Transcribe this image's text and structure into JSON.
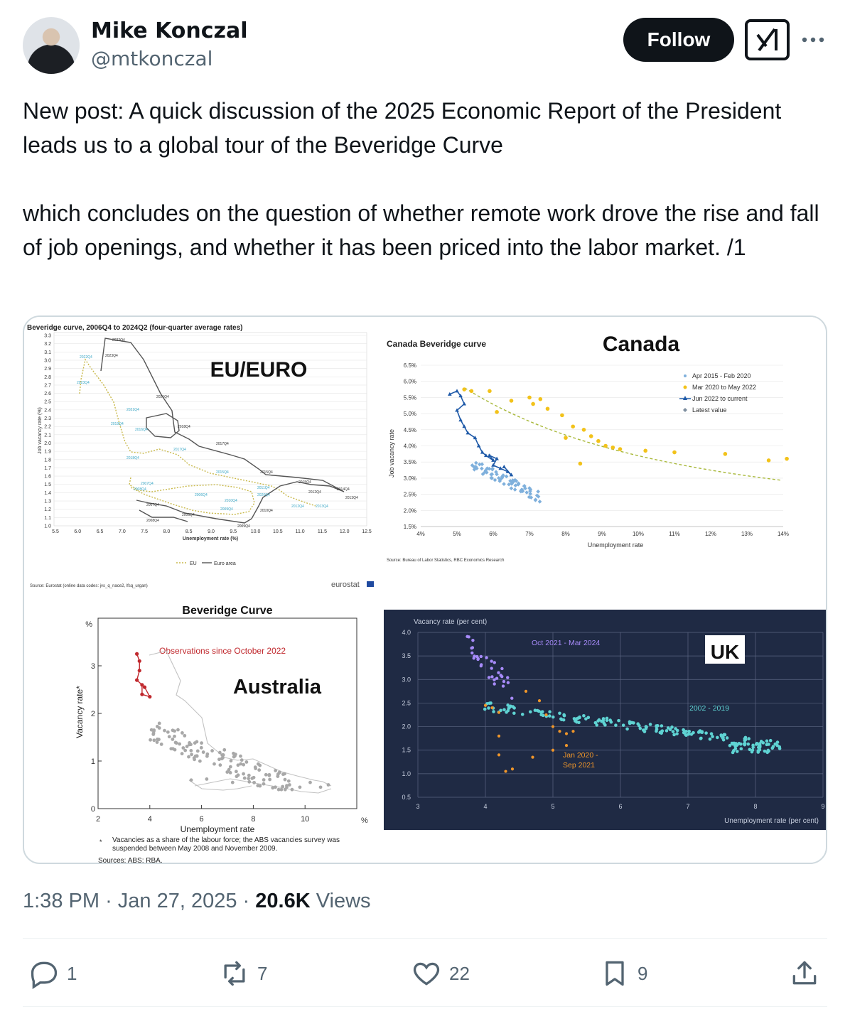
{
  "author": {
    "name": "Mike Konczal",
    "handle": "@mtkonczal",
    "follow_label": "Follow"
  },
  "tweet": {
    "text": "New post: A quick discussion of the 2025 Economic Report of the President leads us to a global tour of the Beveridge Curve\n\nwhich concludes on the question of whether remote work drove the rise and fall of job openings, and whether it has been priced into the labor market. /1"
  },
  "meta": {
    "time": "1:38 PM",
    "date": "Jan 27, 2025",
    "views_count": "20.6K",
    "views_label": "Views"
  },
  "actions": {
    "replies": "1",
    "reposts": "7",
    "likes": "22",
    "bookmarks": "9"
  },
  "media": {
    "eu": {
      "title": "Beveridge curve, 2006Q4 to 2024Q2 (four-quarter average rates)",
      "big_label": "EU/EURO",
      "ylabel": "Job vacancy rate (%)",
      "xlabel": "Unemployment rate (%)",
      "legend_eu": "EU",
      "legend_euro": "Euro area",
      "source": "Source: Eurostat (online data codes: jvs_q_nace2, lfsq_urgan)",
      "brand": "eurostat",
      "x_ticks": [
        "5.5",
        "6.0",
        "6.5",
        "7.0",
        "7.5",
        "8.0",
        "8.5",
        "9.0",
        "9.5",
        "10.0",
        "10.5",
        "11.0",
        "11.5",
        "12.0",
        "12.5"
      ],
      "y_ticks": [
        "3.3",
        "3.2",
        "3.1",
        "3.0",
        "2.9",
        "2.8",
        "2.7",
        "2.6",
        "2.5",
        "2.4",
        "2.3",
        "2.2",
        "2.1",
        "2.0",
        "1.9",
        "1.8",
        "1.7",
        "1.6",
        "1.5",
        "1.4",
        "1.3",
        "1.2",
        "1.1",
        "1.0"
      ]
    },
    "canada": {
      "title": "Canada Beveridge curve",
      "big_label": "Canada",
      "ylabel": "Job vacancy rate",
      "xlabel": "Unemployment rate",
      "source": "Source: Bureau of Labor Statistics, RBC Economics Research",
      "legend": [
        "Apr 2015 - Feb 2020",
        "Mar 2020 to May 2022",
        "Jun 2022 to current",
        "Latest value"
      ],
      "x_ticks": [
        "4%",
        "5%",
        "6%",
        "7%",
        "8%",
        "9%",
        "10%",
        "11%",
        "12%",
        "13%",
        "14%"
      ],
      "y_ticks": [
        "6.5%",
        "6.0%",
        "5.5%",
        "5.0%",
        "4.5%",
        "4.0%",
        "3.5%",
        "3.0%",
        "2.5%",
        "2.0%",
        "1.5%"
      ]
    },
    "australia": {
      "title": "Beveridge Curve",
      "big_label": "Australia",
      "annotation": "Observations since October 2022",
      "ylabel": "Vacancy rate*",
      "xlabel": "Unemployment rate",
      "unit": "%",
      "footnote_mark": "*",
      "footnote": "Vacancies as a share of the labour force; the ABS vacancies survey was suspended between May 2008 and November 2009.",
      "sources": "Sources:  ABS; RBA.",
      "x_ticks": [
        "2",
        "4",
        "6",
        "8",
        "10"
      ],
      "y_ticks": [
        "0",
        "1",
        "2",
        "3"
      ]
    },
    "uk": {
      "ylabel": "Vacancy rate (per cent)",
      "xlabel": "Unemployment rate (per cent)",
      "big_label": "UK",
      "label_recent": "Oct 2021 - Mar 2024",
      "label_pre": "2002 - 2019",
      "label_covid_1": "Jan 2020 -",
      "label_covid_2": "Sep 2021",
      "x_ticks": [
        "3",
        "4",
        "5",
        "6",
        "7",
        "8",
        "9"
      ],
      "y_ticks": [
        "4.0",
        "3.5",
        "3.0",
        "2.5",
        "2.0",
        "1.5",
        "1.0",
        "0.5"
      ]
    }
  }
}
